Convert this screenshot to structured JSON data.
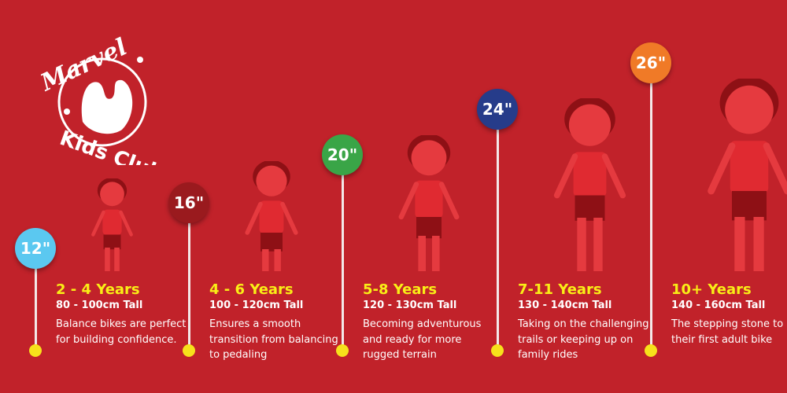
{
  "logo": {
    "text": "Marvel Kids Club"
  },
  "colors": {
    "background": "#c1222a",
    "age": "#f9ee16",
    "dot": "#f7e11b"
  },
  "stages": [
    {
      "size": "12\"",
      "color": "#5bc8f0",
      "age": "2 - 4 Years",
      "height": "80 - 100cm Tall",
      "desc": "Balance bikes are perfect for building confidence."
    },
    {
      "size": "16\"",
      "color": "#9a1a1e",
      "age": "4 - 6 Years",
      "height": "100 - 120cm Tall",
      "desc": "Ensures a smooth transition from balancing to pedaling"
    },
    {
      "size": "20\"",
      "color": "#3aa547",
      "age": "5-8 Years",
      "height": "120 - 130cm Tall",
      "desc": "Becoming adventurous and ready for more rugged terrain"
    },
    {
      "size": "24\"",
      "color": "#263c8a",
      "age": "7-11 Years",
      "height": "130 - 140cm Tall",
      "desc": "Taking on the challenging trails or keeping up on family rides"
    },
    {
      "size": "26\"",
      "color": "#f07a27",
      "age": "10+ Years",
      "height": "140 - 160cm Tall",
      "desc": "The stepping stone to their first adult bike"
    }
  ]
}
